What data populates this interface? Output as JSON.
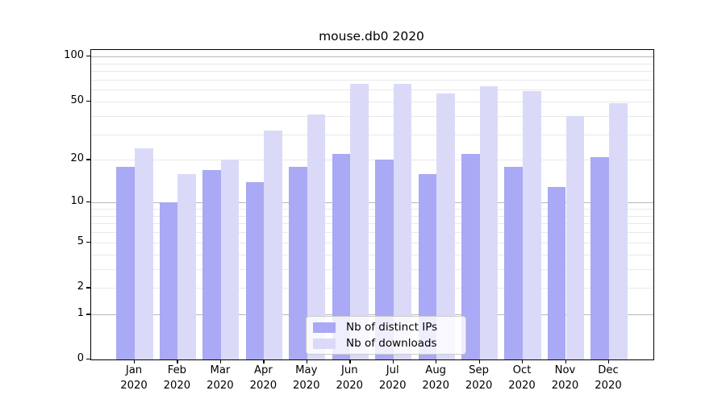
{
  "figure": {
    "title": "mouse.db0 2020"
  },
  "legend": {
    "items": [
      {
        "label": "Nb of distinct IPs",
        "color": "#a9a9f5"
      },
      {
        "label": "Nb of downloads",
        "color": "#dadaf8"
      }
    ]
  },
  "axes": {
    "y_tick_labels": [
      "100",
      "50",
      "20",
      "10",
      "5",
      "2",
      "1",
      "0"
    ],
    "x_tick_year": "2020",
    "grid_minor_color": "#e9e9e9",
    "grid_major_color": "#b8b8b8"
  },
  "chart_data": {
    "type": "bar",
    "title": "mouse.db0 2020",
    "categories": [
      "Jan 2020",
      "Feb 2020",
      "Mar 2020",
      "Apr 2020",
      "May 2020",
      "Jun 2020",
      "Jul 2020",
      "Aug 2020",
      "Sep 2020",
      "Oct 2020",
      "Nov 2020",
      "Dec 2020"
    ],
    "month_labels": [
      "Jan",
      "Feb",
      "Mar",
      "Apr",
      "May",
      "Jun",
      "Jul",
      "Aug",
      "Sep",
      "Oct",
      "Nov",
      "Dec"
    ],
    "year": "2020",
    "series": [
      {
        "name": "Nb of distinct IPs",
        "color": "#a9a9f5",
        "values": [
          18,
          10,
          17,
          14,
          18,
          22,
          20,
          16,
          22,
          18,
          13,
          21
        ]
      },
      {
        "name": "Nb of downloads",
        "color": "#dadaf8",
        "values": [
          24,
          16,
          20,
          32,
          41,
          66,
          66,
          57,
          63,
          59,
          40,
          49
        ]
      }
    ],
    "xlabel": "",
    "ylabel": "",
    "yscale": "log(1+x)",
    "ylim": [
      0,
      100
    ],
    "y_ticks": [
      100,
      50,
      20,
      10,
      5,
      2,
      1,
      0
    ],
    "major_gridlines": [
      1,
      10,
      100
    ],
    "minor_gridlines": [
      2,
      3,
      4,
      5,
      6,
      7,
      8,
      9,
      20,
      30,
      40,
      50,
      60,
      70,
      80,
      90
    ],
    "grid": true,
    "legend_position": "lower center"
  }
}
